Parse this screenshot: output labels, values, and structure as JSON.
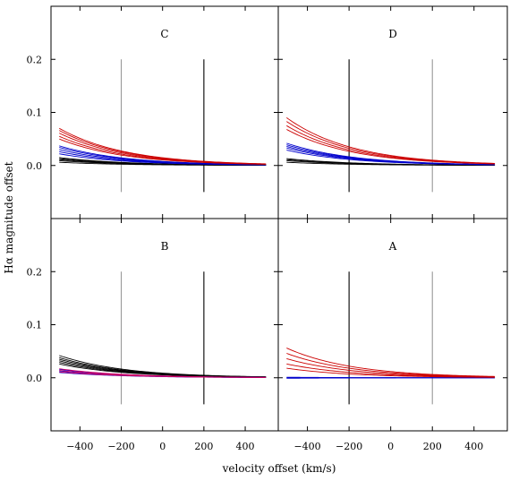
{
  "chart_data": {
    "type": "line",
    "xlabel": "velocity offset (km/s)",
    "ylabel": "Hα magnitude offset",
    "xlim": [
      -540,
      560
    ],
    "ylim": [
      0.3,
      -0.1
    ],
    "y_inverted": true,
    "xticks": [
      -400,
      -200,
      0,
      200,
      400
    ],
    "yticks": [
      0.0,
      0.1,
      0.2
    ],
    "xtick_labels": [
      "−400",
      "−200",
      "0",
      "200",
      "400"
    ],
    "ytick_labels": [
      "0.0",
      "0.1",
      "0.2"
    ],
    "colors": {
      "black": "#000000",
      "blue": "#0000cc",
      "red": "#cc0000",
      "magenta": "#cc0066",
      "grey": "#999999"
    },
    "panels": [
      {
        "label": "C",
        "vlines": [
          {
            "x": -200,
            "color": "grey"
          },
          {
            "x": 200,
            "color": "black"
          }
        ],
        "groups": [
          {
            "color": "black",
            "x_start": -500,
            "y_start": [
              0.006,
              0.009,
              0.011,
              0.013,
              0.015
            ]
          },
          {
            "color": "blue",
            "x_start": -500,
            "y_start": [
              0.022,
              0.026,
              0.03,
              0.034,
              0.037
            ]
          },
          {
            "color": "red",
            "x_start": -500,
            "y_start": [
              0.05,
              0.055,
              0.061,
              0.066,
              0.07
            ]
          }
        ]
      },
      {
        "label": "D",
        "vlines": [
          {
            "x": -200,
            "color": "black"
          },
          {
            "x": 200,
            "color": "grey"
          }
        ],
        "groups": [
          {
            "color": "black",
            "x_start": -500,
            "y_start": [
              0.006,
              0.009,
              0.011,
              0.013
            ]
          },
          {
            "color": "blue",
            "x_start": -500,
            "y_start": [
              0.029,
              0.033,
              0.036,
              0.039,
              0.042
            ]
          },
          {
            "color": "red",
            "x_start": -500,
            "y_start": [
              0.068,
              0.075,
              0.083,
              0.09
            ]
          }
        ]
      },
      {
        "label": "B",
        "vlines": [
          {
            "x": -200,
            "color": "grey"
          },
          {
            "x": 200,
            "color": "black"
          }
        ],
        "groups": [
          {
            "color": "black",
            "x_start": -500,
            "y_start": [
              0.026,
              0.029,
              0.032,
              0.035,
              0.038,
              0.042
            ]
          },
          {
            "color": "blue",
            "x_start": -500,
            "y_start": [
              0.01,
              0.013,
              0.016
            ]
          },
          {
            "color": "magenta",
            "x_start": -500,
            "y_start": [
              0.011,
              0.014,
              0.017
            ]
          }
        ]
      },
      {
        "label": "A",
        "vlines": [
          {
            "x": -200,
            "color": "black"
          },
          {
            "x": 200,
            "color": "grey"
          }
        ],
        "groups": [
          {
            "color": "blue",
            "x_start": -500,
            "y_start": [
              -0.001,
              0.0,
              0.001
            ]
          },
          {
            "color": "red",
            "x_start": -500,
            "y_start": [
              0.018,
              0.026,
              0.036,
              0.046,
              0.056
            ]
          }
        ]
      }
    ]
  }
}
